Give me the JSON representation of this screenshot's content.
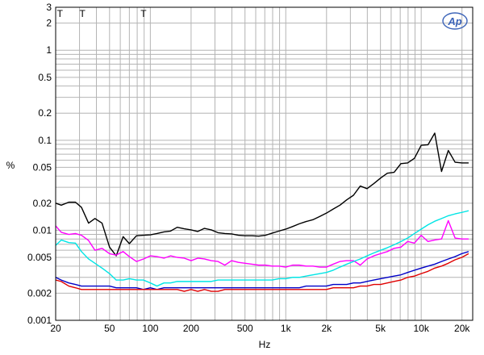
{
  "chart_data": {
    "type": "line",
    "title": "",
    "xlabel": "Hz",
    "ylabel": "%",
    "x_scale": "log",
    "y_scale": "log",
    "xlim": [
      20,
      24000
    ],
    "ylim": [
      0.001,
      3
    ],
    "grid": true,
    "x_tick_labels": [
      {
        "value": 20,
        "label": "20"
      },
      {
        "value": 50,
        "label": "50"
      },
      {
        "value": 100,
        "label": "100"
      },
      {
        "value": 200,
        "label": "200"
      },
      {
        "value": 500,
        "label": "500"
      },
      {
        "value": 1000,
        "label": "1k"
      },
      {
        "value": 2000,
        "label": "2k"
      },
      {
        "value": 5000,
        "label": "5k"
      },
      {
        "value": 10000,
        "label": "10k"
      },
      {
        "value": 20000,
        "label": "20k"
      }
    ],
    "y_tick_labels": [
      {
        "value": 3,
        "label": "3"
      },
      {
        "value": 2,
        "label": "2"
      },
      {
        "value": 1,
        "label": "1"
      },
      {
        "value": 0.5,
        "label": "0.5"
      },
      {
        "value": 0.2,
        "label": "0.2"
      },
      {
        "value": 0.1,
        "label": "0.1"
      },
      {
        "value": 0.05,
        "label": "0.05"
      },
      {
        "value": 0.02,
        "label": "0.02"
      },
      {
        "value": 0.01,
        "label": "0.01"
      },
      {
        "value": 0.005,
        "label": "0.005"
      },
      {
        "value": 0.002,
        "label": "0.002"
      },
      {
        "value": 0.001,
        "label": "0.001"
      }
    ],
    "markers": [
      {
        "label": "T",
        "x": 21.5
      },
      {
        "label": "T",
        "x": 31.5
      },
      {
        "label": "T",
        "x": 89
      }
    ],
    "logo": "Ap",
    "series": [
      {
        "color": "#000000",
        "x": [
          20,
          22,
          25,
          28,
          31,
          35,
          39,
          44,
          50,
          56,
          63,
          70,
          79,
          89,
          100,
          112,
          126,
          141,
          158,
          178,
          200,
          224,
          251,
          282,
          316,
          355,
          398,
          447,
          501,
          562,
          631,
          708,
          794,
          891,
          1000,
          1122,
          1259,
          1413,
          1585,
          1778,
          1995,
          2239,
          2512,
          2818,
          3162,
          3548,
          3981,
          4467,
          5012,
          5623,
          6310,
          7079,
          7943,
          8913,
          10000,
          11220,
          12589,
          14125,
          15849,
          17783,
          19953,
          22387
        ],
        "values": [
          0.02,
          0.019,
          0.0205,
          0.0205,
          0.018,
          0.012,
          0.0135,
          0.012,
          0.0065,
          0.0052,
          0.0085,
          0.0071,
          0.0087,
          0.0088,
          0.0089,
          0.0092,
          0.0096,
          0.0098,
          0.0108,
          0.0104,
          0.0101,
          0.0097,
          0.0105,
          0.0101,
          0.0094,
          0.0092,
          0.0091,
          0.0088,
          0.0087,
          0.0087,
          0.0086,
          0.0088,
          0.0093,
          0.0098,
          0.0103,
          0.011,
          0.0118,
          0.0125,
          0.0131,
          0.0142,
          0.0155,
          0.0172,
          0.019,
          0.0218,
          0.0245,
          0.031,
          0.029,
          0.033,
          0.038,
          0.043,
          0.044,
          0.055,
          0.056,
          0.063,
          0.088,
          0.089,
          0.12,
          0.045,
          0.077,
          0.057,
          0.056,
          0.056
        ]
      },
      {
        "color": "#ff00ff",
        "x": [
          20,
          22,
          25,
          28,
          31,
          35,
          39,
          44,
          50,
          56,
          63,
          70,
          79,
          89,
          100,
          112,
          126,
          141,
          158,
          178,
          200,
          224,
          251,
          282,
          316,
          355,
          398,
          447,
          501,
          562,
          631,
          708,
          794,
          891,
          1000,
          1122,
          1259,
          1413,
          1585,
          1778,
          1995,
          2239,
          2512,
          2818,
          3162,
          3548,
          3981,
          4467,
          5012,
          5623,
          6310,
          7079,
          7943,
          8913,
          10000,
          11220,
          12589,
          14125,
          15849,
          17783,
          19953,
          22387
        ],
        "values": [
          0.0112,
          0.0095,
          0.009,
          0.0092,
          0.0088,
          0.0077,
          0.006,
          0.0063,
          0.0055,
          0.0053,
          0.0058,
          0.0051,
          0.0045,
          0.0048,
          0.0052,
          0.0051,
          0.0049,
          0.0052,
          0.005,
          0.0049,
          0.0046,
          0.0049,
          0.0048,
          0.0046,
          0.0045,
          0.0041,
          0.0046,
          0.0044,
          0.0043,
          0.0042,
          0.0041,
          0.0041,
          0.004,
          0.004,
          0.0039,
          0.0041,
          0.0041,
          0.004,
          0.004,
          0.0039,
          0.0039,
          0.0042,
          0.0045,
          0.0046,
          0.0046,
          0.0041,
          0.0048,
          0.0052,
          0.0055,
          0.0058,
          0.0063,
          0.0065,
          0.0075,
          0.0072,
          0.0088,
          0.0075,
          0.0078,
          0.008,
          0.0128,
          0.0082,
          0.008,
          0.008
        ]
      },
      {
        "color": "#00e5e5",
        "x": [
          20,
          22,
          25,
          28,
          31,
          35,
          39,
          44,
          50,
          56,
          63,
          70,
          79,
          89,
          100,
          112,
          126,
          141,
          158,
          178,
          200,
          224,
          251,
          282,
          316,
          355,
          398,
          447,
          501,
          562,
          631,
          708,
          794,
          891,
          1000,
          1122,
          1259,
          1413,
          1585,
          1778,
          1995,
          2239,
          2512,
          2818,
          3162,
          3548,
          3981,
          4467,
          5012,
          5623,
          6310,
          7079,
          7943,
          8913,
          10000,
          11220,
          12589,
          14125,
          15849,
          17783,
          19953,
          22387
        ],
        "values": [
          0.0068,
          0.0078,
          0.0073,
          0.0072,
          0.0058,
          0.0048,
          0.0043,
          0.0038,
          0.0033,
          0.0028,
          0.0028,
          0.0029,
          0.0028,
          0.0028,
          0.0026,
          0.0024,
          0.0026,
          0.0026,
          0.0027,
          0.0027,
          0.0027,
          0.0027,
          0.0027,
          0.0027,
          0.0028,
          0.0028,
          0.0028,
          0.0028,
          0.0028,
          0.0028,
          0.0028,
          0.0028,
          0.0028,
          0.0029,
          0.0029,
          0.003,
          0.003,
          0.0031,
          0.0032,
          0.0033,
          0.0034,
          0.0036,
          0.0039,
          0.0042,
          0.0045,
          0.0048,
          0.0052,
          0.0056,
          0.006,
          0.0064,
          0.0069,
          0.0075,
          0.0082,
          0.0092,
          0.0103,
          0.0115,
          0.0126,
          0.0135,
          0.0145,
          0.0152,
          0.0158,
          0.0165
        ]
      },
      {
        "color": "#0000c8",
        "x": [
          20,
          22,
          25,
          28,
          31,
          35,
          39,
          44,
          50,
          56,
          63,
          70,
          79,
          89,
          100,
          112,
          126,
          141,
          158,
          178,
          200,
          224,
          251,
          282,
          316,
          355,
          398,
          447,
          501,
          562,
          631,
          708,
          794,
          891,
          1000,
          1122,
          1259,
          1413,
          1585,
          1778,
          1995,
          2239,
          2512,
          2818,
          3162,
          3548,
          3981,
          4467,
          5012,
          5623,
          6310,
          7079,
          7943,
          8913,
          10000,
          11220,
          12589,
          14125,
          15849,
          17783,
          19953,
          22387
        ],
        "values": [
          0.003,
          0.0028,
          0.0026,
          0.0025,
          0.0024,
          0.0024,
          0.0024,
          0.0024,
          0.0024,
          0.0023,
          0.0023,
          0.0023,
          0.0023,
          0.0022,
          0.0023,
          0.0022,
          0.0023,
          0.0023,
          0.0023,
          0.0023,
          0.0023,
          0.0023,
          0.0023,
          0.0023,
          0.0023,
          0.0023,
          0.0023,
          0.0023,
          0.0023,
          0.0023,
          0.0023,
          0.0023,
          0.0023,
          0.0023,
          0.0023,
          0.0023,
          0.0023,
          0.0024,
          0.0024,
          0.0024,
          0.0024,
          0.0025,
          0.0025,
          0.0025,
          0.0026,
          0.0026,
          0.0027,
          0.0028,
          0.0029,
          0.003,
          0.0031,
          0.0032,
          0.0034,
          0.0036,
          0.0038,
          0.004,
          0.0042,
          0.0045,
          0.0048,
          0.0051,
          0.0055,
          0.0058
        ]
      },
      {
        "color": "#e00000",
        "x": [
          20,
          22,
          25,
          28,
          31,
          35,
          39,
          44,
          50,
          56,
          63,
          70,
          79,
          89,
          100,
          112,
          126,
          141,
          158,
          178,
          200,
          224,
          251,
          282,
          316,
          355,
          398,
          447,
          501,
          562,
          631,
          708,
          794,
          891,
          1000,
          1122,
          1259,
          1413,
          1585,
          1778,
          1995,
          2239,
          2512,
          2818,
          3162,
          3548,
          3981,
          4467,
          5012,
          5623,
          6310,
          7079,
          7943,
          8913,
          10000,
          11220,
          12589,
          14125,
          15849,
          17783,
          19953,
          22387
        ],
        "values": [
          0.0028,
          0.0027,
          0.0024,
          0.0023,
          0.0022,
          0.0022,
          0.0022,
          0.0022,
          0.0022,
          0.0022,
          0.0022,
          0.0022,
          0.0022,
          0.0022,
          0.0022,
          0.0022,
          0.0022,
          0.0022,
          0.0022,
          0.0021,
          0.0022,
          0.0021,
          0.0022,
          0.0021,
          0.0021,
          0.0022,
          0.0022,
          0.0022,
          0.0022,
          0.0022,
          0.0022,
          0.0022,
          0.0022,
          0.0022,
          0.0022,
          0.0022,
          0.0022,
          0.0022,
          0.0022,
          0.0022,
          0.0022,
          0.0023,
          0.0023,
          0.0023,
          0.0023,
          0.0024,
          0.0024,
          0.0025,
          0.0025,
          0.0026,
          0.0027,
          0.0028,
          0.003,
          0.0031,
          0.0033,
          0.0035,
          0.0038,
          0.004,
          0.0043,
          0.0047,
          0.005,
          0.0055
        ]
      }
    ]
  }
}
